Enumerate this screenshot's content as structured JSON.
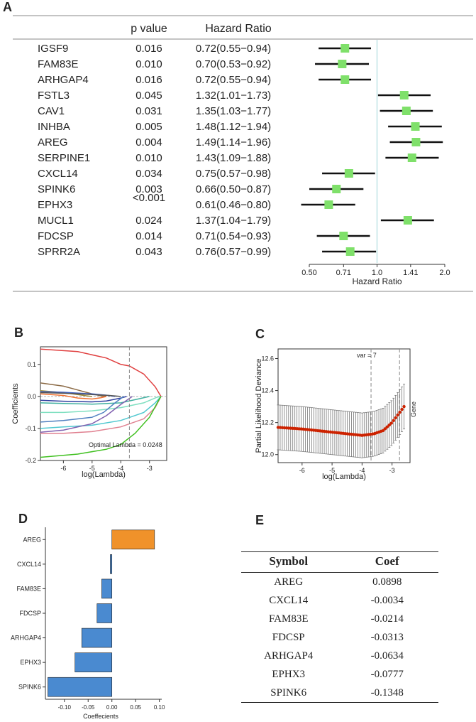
{
  "panels": {
    "A": "A",
    "B": "B",
    "C": "C",
    "D": "D",
    "E": "E"
  },
  "chart_data": [
    {
      "type": "forest",
      "panel": "A",
      "headers": {
        "pvalue": "p value",
        "hr": "Hazard Ratio"
      },
      "rows": [
        {
          "gene": "IGSF9",
          "p": "0.016",
          "hr_text": "0.72(0.55−0.94)",
          "hr": 0.72,
          "lo": 0.55,
          "hi": 0.94
        },
        {
          "gene": "FAM83E",
          "p": "0.010",
          "hr_text": "0.70(0.53−0.92)",
          "hr": 0.7,
          "lo": 0.53,
          "hi": 0.92
        },
        {
          "gene": "ARHGAP4",
          "p": "0.016",
          "hr_text": "0.72(0.55−0.94)",
          "hr": 0.72,
          "lo": 0.55,
          "hi": 0.94
        },
        {
          "gene": "FSTL3",
          "p": "0.045",
          "hr_text": "1.32(1.01−1.73)",
          "hr": 1.32,
          "lo": 1.01,
          "hi": 1.73
        },
        {
          "gene": "CAV1",
          "p": "0.031",
          "hr_text": "1.35(1.03−1.77)",
          "hr": 1.35,
          "lo": 1.03,
          "hi": 1.77
        },
        {
          "gene": "INHBA",
          "p": "0.005",
          "hr_text": "1.48(1.12−1.94)",
          "hr": 1.48,
          "lo": 1.12,
          "hi": 1.94
        },
        {
          "gene": "AREG",
          "p": "0.004",
          "hr_text": "1.49(1.14−1.96)",
          "hr": 1.49,
          "lo": 1.14,
          "hi": 1.96
        },
        {
          "gene": "SERPINE1",
          "p": "0.010",
          "hr_text": "1.43(1.09−1.88)",
          "hr": 1.43,
          "lo": 1.09,
          "hi": 1.88
        },
        {
          "gene": "CXCL14",
          "p": "0.034",
          "hr_text": "0.75(0.57−0.98)",
          "hr": 0.75,
          "lo": 0.57,
          "hi": 0.98
        },
        {
          "gene": "SPINK6",
          "p": "0.003",
          "hr_text": "0.66(0.50−0.87)",
          "hr": 0.66,
          "lo": 0.5,
          "hi": 0.87
        },
        {
          "gene": "EPHX3",
          "p": "<0.001",
          "hr_text": "0.61(0.46−0.80)",
          "hr": 0.61,
          "lo": 0.46,
          "hi": 0.8
        },
        {
          "gene": "MUCL1",
          "p": "0.024",
          "hr_text": "1.37(1.04−1.79)",
          "hr": 1.37,
          "lo": 1.04,
          "hi": 1.79
        },
        {
          "gene": "FDCSP",
          "p": "0.014",
          "hr_text": "0.71(0.54−0.93)",
          "hr": 0.71,
          "lo": 0.54,
          "hi": 0.93
        },
        {
          "gene": "SPRR2A",
          "p": "0.043",
          "hr_text": "0.76(0.57−0.99)",
          "hr": 0.76,
          "lo": 0.57,
          "hi": 0.99
        }
      ],
      "x_scale": "log",
      "xlim": [
        0.5,
        2.0
      ],
      "xticks": [
        0.5,
        0.71,
        1.0,
        1.41,
        2.0
      ],
      "xtick_labels": [
        "0.50",
        "0.71",
        "1.0",
        "1.41",
        "2.0"
      ],
      "xlabel": "Hazard Ratio",
      "reference_line": 1.0,
      "marker_color": "#7fe06a"
    },
    {
      "type": "line",
      "panel": "B",
      "xlabel": "log(Lambda)",
      "ylabel": "Coefficients",
      "xlim": [
        -6.8,
        -2.4
      ],
      "ylim": [
        -0.2,
        0.155
      ],
      "xticks": [
        -6,
        -5,
        -4,
        -3
      ],
      "yticks": [
        -0.2,
        -0.1,
        0.0,
        0.1
      ],
      "ytick_labels": [
        "-0.2",
        "-0.1",
        "0.0",
        "0.1"
      ],
      "optimal_log_lambda": -3.7,
      "annotation": "Optimal Lambda = 0.0248",
      "series": [
        {
          "name": "red",
          "color": "#e04040",
          "x": [
            -6.8,
            -5.5,
            -4.5,
            -4.0,
            -3.7,
            -3.2,
            -2.8,
            -2.6
          ],
          "y": [
            0.148,
            0.14,
            0.12,
            0.1,
            0.095,
            0.07,
            0.03,
            0.0
          ]
        },
        {
          "name": "brown",
          "color": "#8b6a45",
          "x": [
            -6.8,
            -6.0,
            -5.5,
            -5.0,
            -4.7,
            -4.5
          ],
          "y": [
            0.042,
            0.032,
            0.02,
            0.008,
            0.002,
            0.0
          ]
        },
        {
          "name": "olive",
          "color": "#9a8a3a",
          "x": [
            -6.8,
            -6.0,
            -5.5,
            -5.2,
            -5.0
          ],
          "y": [
            0.018,
            0.012,
            0.006,
            0.002,
            0.0
          ]
        },
        {
          "name": "blue",
          "color": "#4060c0",
          "x": [
            -6.8,
            -6.0,
            -5.0,
            -4.5,
            -4.2
          ],
          "y": [
            0.015,
            0.013,
            0.008,
            0.004,
            0.0
          ]
        },
        {
          "name": "darkgray",
          "color": "#555555",
          "x": [
            -6.8,
            -6.0,
            -5.0,
            -4.4,
            -4.0
          ],
          "y": [
            0.012,
            0.01,
            0.006,
            0.003,
            0.0
          ]
        },
        {
          "name": "orange",
          "color": "#f07030",
          "x": [
            -6.8,
            -6.0,
            -5.5,
            -5.0,
            -4.7,
            -4.5
          ],
          "y": [
            0.008,
            0.003,
            -0.005,
            -0.008,
            -0.004,
            0.0
          ]
        },
        {
          "name": "navy",
          "color": "#3040a0",
          "x": [
            -6.8,
            -6.0,
            -5.0,
            -4.5,
            -4.0,
            -3.8
          ],
          "y": [
            -0.012,
            -0.015,
            -0.017,
            -0.014,
            -0.005,
            0.0
          ]
        },
        {
          "name": "teal",
          "color": "#40b0a0",
          "x": [
            -6.8,
            -6.0,
            -5.0,
            -4.0,
            -3.4,
            -3.0
          ],
          "y": [
            -0.02,
            -0.022,
            -0.024,
            -0.02,
            -0.008,
            0.0
          ]
        },
        {
          "name": "aquamarine",
          "color": "#7fdfc0",
          "x": [
            -6.8,
            -6.0,
            -5.0,
            -4.0,
            -3.2,
            -2.75,
            -2.6
          ],
          "y": [
            -0.05,
            -0.05,
            -0.045,
            -0.035,
            -0.02,
            -0.003,
            0.0
          ]
        },
        {
          "name": "steelblue",
          "color": "#5080c0",
          "x": [
            -6.8,
            -6.0,
            -5.0,
            -4.6,
            -4.2,
            -3.9
          ],
          "y": [
            -0.08,
            -0.075,
            -0.065,
            -0.05,
            -0.02,
            0.0
          ]
        },
        {
          "name": "cyan",
          "color": "#50c8d0",
          "x": [
            -6.8,
            -6.0,
            -5.0,
            -4.0,
            -3.2,
            -2.8,
            -2.6
          ],
          "y": [
            -0.1,
            -0.095,
            -0.09,
            -0.075,
            -0.05,
            -0.02,
            0.0
          ]
        },
        {
          "name": "pink",
          "color": "#e08090",
          "x": [
            -6.8,
            -6.0,
            -5.0,
            -4.0,
            -3.2,
            -2.8,
            -2.6
          ],
          "y": [
            -0.115,
            -0.115,
            -0.11,
            -0.095,
            -0.07,
            -0.035,
            0.0
          ]
        },
        {
          "name": "purple",
          "color": "#8060b0",
          "x": [
            -6.8,
            -6.0,
            -5.0,
            -4.5,
            -4.0,
            -3.6
          ],
          "y": [
            -0.112,
            -0.105,
            -0.085,
            -0.06,
            -0.025,
            0.0
          ]
        },
        {
          "name": "green",
          "color": "#40c020",
          "x": [
            -6.8,
            -5.5,
            -4.5,
            -4.0,
            -3.5,
            -3.0,
            -2.7,
            -2.6
          ],
          "y": [
            -0.19,
            -0.18,
            -0.165,
            -0.15,
            -0.115,
            -0.065,
            -0.015,
            0.0
          ]
        }
      ]
    },
    {
      "type": "errorbar",
      "panel": "C",
      "xlabel": "log(Lambda)",
      "ylabel": "Partial Likelihood Deviance",
      "right_label": "Gene",
      "xlim": [
        -6.8,
        -2.4
      ],
      "ylim": [
        11.95,
        12.66
      ],
      "xticks": [
        -6,
        -5,
        -4,
        -3
      ],
      "yticks": [
        12.0,
        12.2,
        12.4,
        12.6
      ],
      "ytick_labels": [
        "12.0",
        "12.2",
        "12.4",
        "12.6"
      ],
      "vlines": [
        -3.7,
        -2.75
      ],
      "vline_label": "var = 7",
      "color": "#cc2200",
      "x_start": -6.8,
      "x_step": 0.07,
      "n_points": 61,
      "curve_knots_x": [
        -6.8,
        -6.0,
        -5.0,
        -4.5,
        -4.0,
        -3.6,
        -3.3,
        -3.0,
        -2.8,
        -2.6
      ],
      "curve_knots_y": [
        12.17,
        12.16,
        12.14,
        12.13,
        12.12,
        12.13,
        12.15,
        12.2,
        12.25,
        12.3
      ],
      "err_knots_y": [
        0.14,
        0.14,
        0.14,
        0.14,
        0.14,
        0.14,
        0.14,
        0.14,
        0.14,
        0.14
      ]
    },
    {
      "type": "bar",
      "panel": "D",
      "orientation": "horizontal",
      "categories": [
        "AREG",
        "CXCL14",
        "FAM83E",
        "FDCSP",
        "ARHGAP4",
        "EPHX3",
        "SPINK6"
      ],
      "values": [
        0.0898,
        -0.0034,
        -0.0214,
        -0.0313,
        -0.0634,
        -0.0777,
        -0.1348
      ],
      "positive_color": "#f0922a",
      "negative_color": "#4a8ad0",
      "xlabel": "Coeffecients",
      "xlim": [
        -0.14,
        0.105
      ],
      "xticks": [
        -0.1,
        -0.05,
        0.0,
        0.05,
        0.1
      ],
      "xtick_labels": [
        "-0.10",
        "-0.05",
        "0.00",
        "0.05",
        "0.10"
      ]
    }
  ],
  "table": {
    "headers": [
      "Symbol",
      "Coef"
    ],
    "rows": [
      [
        "AREG",
        "0.0898"
      ],
      [
        "CXCL14",
        "-0.0034"
      ],
      [
        "FAM83E",
        "-0.0214"
      ],
      [
        "FDCSP",
        "-0.0313"
      ],
      [
        "ARHGAP4",
        "-0.0634"
      ],
      [
        "EPHX3",
        "-0.0777"
      ],
      [
        "SPINK6",
        "-0.1348"
      ]
    ]
  }
}
